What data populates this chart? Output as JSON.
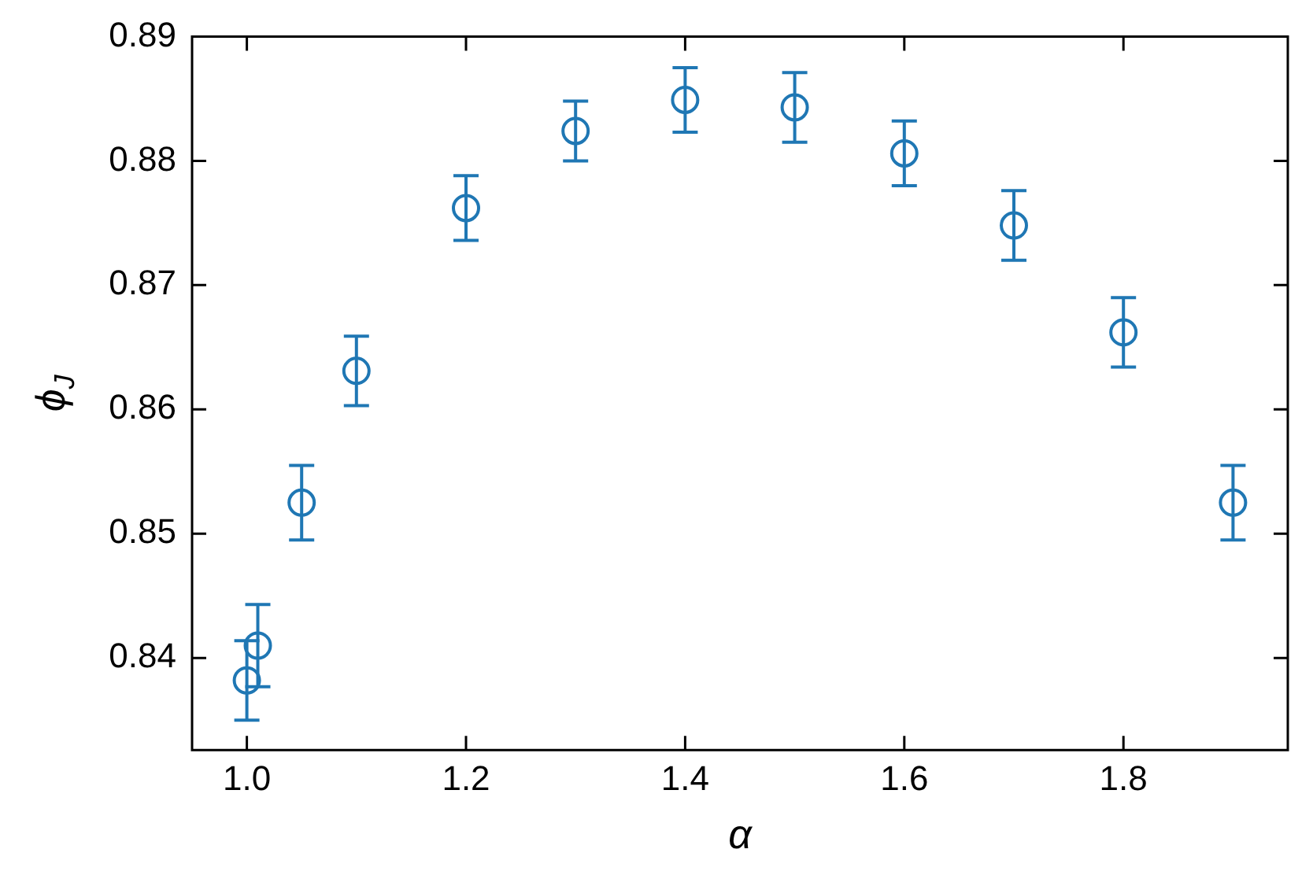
{
  "chart_data": {
    "type": "scatter",
    "xlabel": "α",
    "ylabel": "ϕ$_{J}$",
    "x": [
      1.0,
      1.01,
      1.05,
      1.1,
      1.2,
      1.3,
      1.4,
      1.5,
      1.6,
      1.7,
      1.8,
      1.9
    ],
    "values": [
      0.8382,
      0.841,
      0.8525,
      0.8631,
      0.8762,
      0.8824,
      0.8849,
      0.8843,
      0.8806,
      0.8748,
      0.8662,
      0.8525
    ],
    "errors": [
      0.0032,
      0.0033,
      0.003,
      0.0028,
      0.0026,
      0.0024,
      0.0026,
      0.0028,
      0.0026,
      0.0028,
      0.0028,
      0.003
    ],
    "color": "#1f77b4",
    "marker": "circle",
    "grid": false,
    "legend": false,
    "xlim": [
      0.95,
      1.95
    ],
    "xticks": [
      {
        "value": 1.0,
        "label": "1.0"
      },
      {
        "value": 1.2,
        "label": "1.2"
      },
      {
        "value": 1.4,
        "label": "1.4"
      },
      {
        "value": 1.6,
        "label": "1.6"
      },
      {
        "value": 1.8,
        "label": "1.8"
      }
    ],
    "ylim": [
      0.8326,
      0.89
    ],
    "yticks": [
      0.84,
      0.85,
      0.86,
      0.87,
      0.88,
      0.89
    ]
  }
}
